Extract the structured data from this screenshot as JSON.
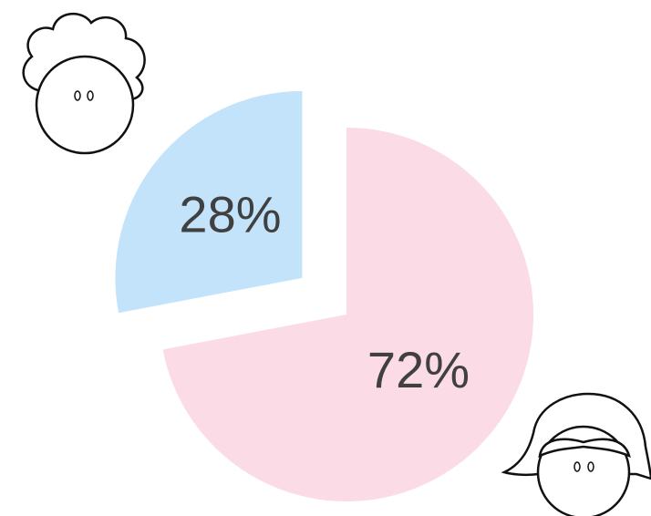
{
  "chart_data": {
    "type": "pie",
    "values": [
      72,
      28
    ],
    "value_labels": [
      "72%",
      "28%"
    ],
    "colors": [
      "#fadbe6",
      "#c2e3fa"
    ]
  }
}
